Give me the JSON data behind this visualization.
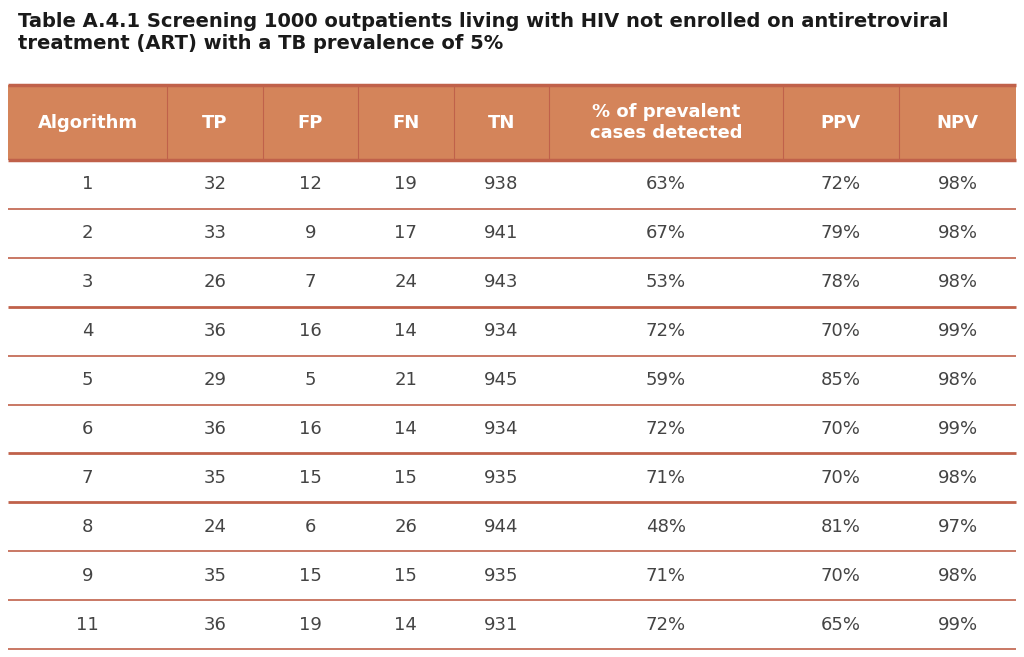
{
  "title_line1": "Table A.4.1 Screening 1000 outpatients living with HIV not enrolled on antiretroviral",
  "title_line2": "treatment (ART) with a TB prevalence of 5%",
  "columns": [
    "Algorithm",
    "TP",
    "FP",
    "FN",
    "TN",
    "% of prevalent\ncases detected",
    "PPV",
    "NPV"
  ],
  "rows": [
    [
      "1",
      "32",
      "12",
      "19",
      "938",
      "63%",
      "72%",
      "98%"
    ],
    [
      "2",
      "33",
      "9",
      "17",
      "941",
      "67%",
      "79%",
      "98%"
    ],
    [
      "3",
      "26",
      "7",
      "24",
      "943",
      "53%",
      "78%",
      "98%"
    ],
    [
      "4",
      "36",
      "16",
      "14",
      "934",
      "72%",
      "70%",
      "99%"
    ],
    [
      "5",
      "29",
      "5",
      "21",
      "945",
      "59%",
      "85%",
      "98%"
    ],
    [
      "6",
      "36",
      "16",
      "14",
      "934",
      "72%",
      "70%",
      "99%"
    ],
    [
      "7",
      "35",
      "15",
      "15",
      "935",
      "71%",
      "70%",
      "98%"
    ],
    [
      "8",
      "24",
      "6",
      "26",
      "944",
      "48%",
      "81%",
      "97%"
    ],
    [
      "9",
      "35",
      "15",
      "15",
      "935",
      "71%",
      "70%",
      "98%"
    ],
    [
      "11",
      "36",
      "19",
      "14",
      "931",
      "72%",
      "65%",
      "99%"
    ]
  ],
  "header_bg": "#D4845A",
  "header_text": "#FFFFFF",
  "body_bg": "#FFFFFF",
  "body_text": "#444444",
  "title_text": "#1a1a1a",
  "divider_color": "#C0614A",
  "thick_after_rows": [
    2,
    5,
    6
  ],
  "bg_color": "#FFFFFF",
  "col_widths_rel": [
    1.5,
    0.9,
    0.9,
    0.9,
    0.9,
    2.2,
    1.1,
    1.1
  ],
  "title_fontsize": 14,
  "header_fontsize": 13,
  "body_fontsize": 13
}
